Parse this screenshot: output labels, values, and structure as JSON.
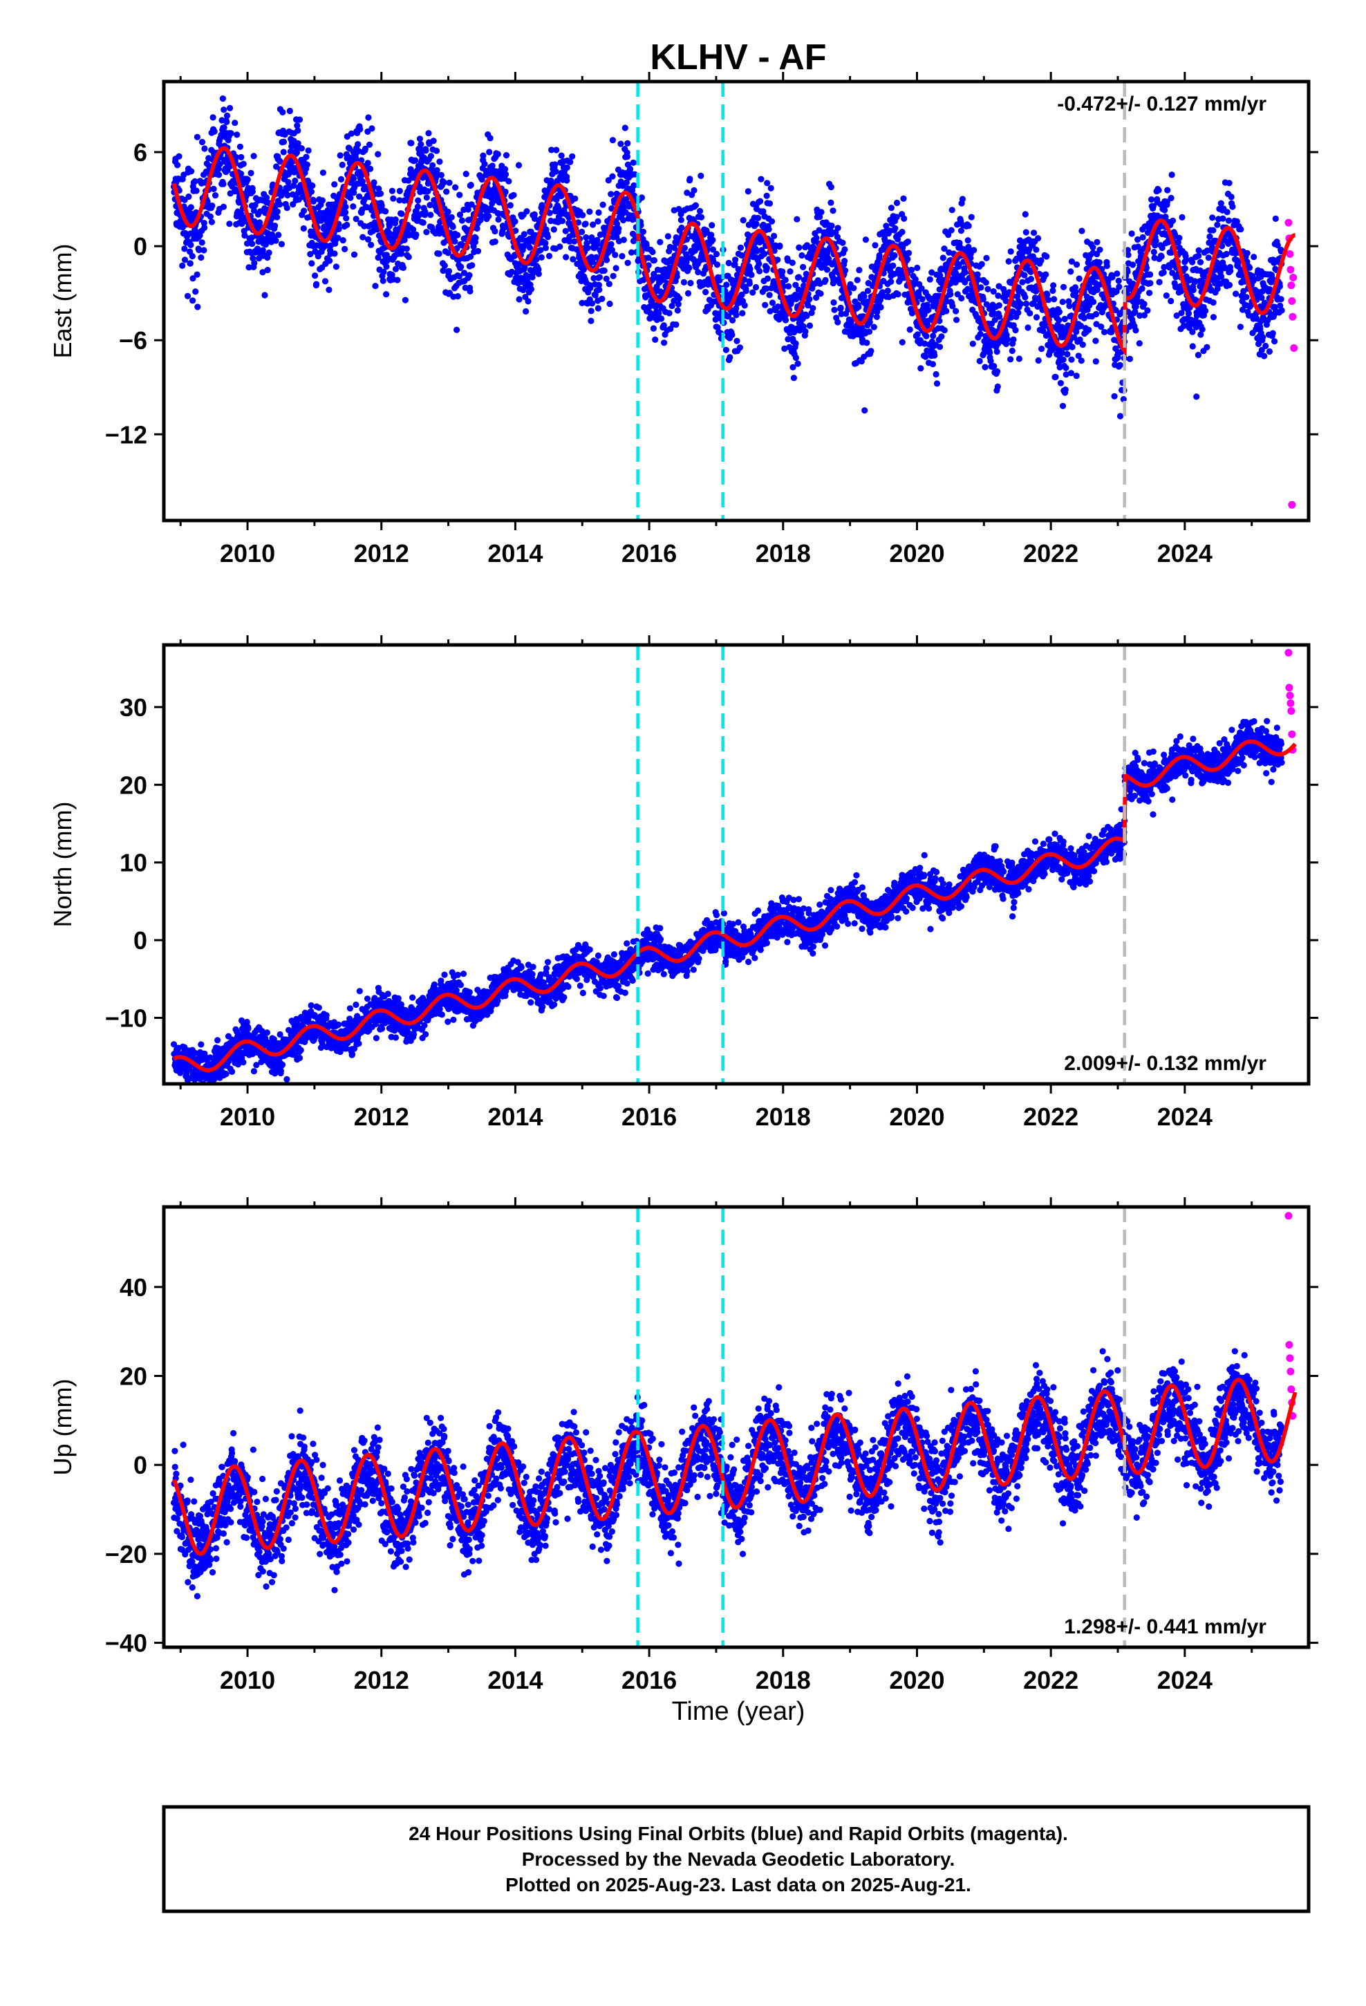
{
  "title": "KLHV - AF",
  "xlabel": "Time (year)",
  "footer": {
    "line1": "24 Hour Positions Using Final Orbits (blue) and Rapid Orbits (magenta).",
    "line2": "Processed by the Nevada Geodetic Laboratory.",
    "line3": "Plotted on 2025-Aug-23. Last data on 2025-Aug-21."
  },
  "colors": {
    "final_orbits": "#0000ff",
    "rapid_orbits": "#ff00ff",
    "model": "#ff0000",
    "equipment_change": "#00e5ee",
    "earthquake_offset": "#bbbbbb"
  },
  "chart_data": [
    {
      "type": "scatter",
      "component": "east",
      "ylabel": "East (mm)",
      "rate_label": "-0.472+/- 0.127 mm/yr",
      "xlim": [
        2008.75,
        2025.85
      ],
      "ylim": [
        -17.5,
        10.5
      ],
      "xticks": [
        2010,
        2012,
        2014,
        2016,
        2018,
        2020,
        2022,
        2024
      ],
      "yticks": [
        6,
        0,
        -6,
        -12
      ],
      "ytick_labels": [
        "6",
        "0",
        "−6",
        "−12"
      ],
      "cyan_lines": [
        2015.83,
        2017.1
      ],
      "gray_lines": [
        2023.1
      ],
      "series": [
        {
          "kind": "final_orbits",
          "x_start": 2008.9,
          "x_end": 2025.45,
          "trend_y0": 3.8,
          "rate": -0.472,
          "amplitude": 2.4,
          "phase_year": 0.4,
          "scatter": 1.6,
          "step_at": 2015.83,
          "step_y": -1.5,
          "step2_at": 2023.1,
          "step2_y": 3.5
        },
        {
          "kind": "rapid_orbits",
          "x": [
            2025.55,
            2025.56,
            2025.57,
            2025.58,
            2025.59,
            2025.6,
            2025.61,
            2025.62,
            2025.63,
            2025.6
          ],
          "y": [
            1.5,
            0.5,
            -0.5,
            -1.5,
            -2.5,
            -3.5,
            -4.5,
            -2.0,
            -6.5,
            -16.5
          ]
        }
      ],
      "model": {
        "y0": 4.0,
        "rate": -0.472,
        "amplitude": 2.6,
        "phase_year": 0.4,
        "offsets": [
          {
            "at": 2015.83,
            "dy": -1.5
          },
          {
            "at": 2023.1,
            "dy": 3.5
          }
        ]
      }
    },
    {
      "type": "scatter",
      "component": "north",
      "ylabel": "North (mm)",
      "rate_label": "2.009+/- 0.132 mm/yr",
      "xlim": [
        2008.75,
        2025.85
      ],
      "ylim": [
        -18.5,
        38
      ],
      "xticks": [
        2010,
        2012,
        2014,
        2016,
        2018,
        2020,
        2022,
        2024
      ],
      "yticks": [
        30,
        20,
        10,
        0,
        -10
      ],
      "ytick_labels": [
        "30",
        "20",
        "10",
        "0",
        "−10"
      ],
      "cyan_lines": [
        2015.83,
        2017.1
      ],
      "gray_lines": [
        2023.1
      ],
      "series": [
        {
          "kind": "final_orbits",
          "x_start": 2008.9,
          "x_end": 2025.45,
          "trend_y0": -16.5,
          "rate": 2.009,
          "amplitude": 1.2,
          "phase_year": 0.7,
          "scatter": 1.2,
          "step_at": 2023.1,
          "step_y": 8.5
        },
        {
          "kind": "rapid_orbits",
          "x": [
            2025.55,
            2025.56,
            2025.57,
            2025.58,
            2025.59,
            2025.6,
            2025.61
          ],
          "y": [
            37,
            32.5,
            31.5,
            30.5,
            29.5,
            26.5,
            24.5
          ]
        }
      ],
      "model": {
        "y0": -16.5,
        "rate": 2.009,
        "amplitude": 1.3,
        "phase_year": 0.7,
        "offsets": [
          {
            "at": 2023.1,
            "dy": 8.5
          }
        ]
      }
    },
    {
      "type": "scatter",
      "component": "up",
      "ylabel": "Up (mm)",
      "rate_label": "1.298+/- 0.441 mm/yr",
      "xlim": [
        2008.75,
        2025.85
      ],
      "ylim": [
        -41,
        58
      ],
      "xticks": [
        2010,
        2012,
        2014,
        2016,
        2018,
        2020,
        2022,
        2024
      ],
      "yticks": [
        40,
        20,
        0,
        -20,
        -40
      ],
      "ytick_labels": [
        "40",
        "20",
        "0",
        "−20",
        "−40"
      ],
      "cyan_lines": [
        2015.83,
        2017.1
      ],
      "gray_lines": [
        2023.1
      ],
      "series": [
        {
          "kind": "final_orbits",
          "x_start": 2008.9,
          "x_end": 2025.45,
          "trend_y0": -12,
          "rate": 1.298,
          "amplitude": 7.5,
          "phase_year": 0.55,
          "scatter": 4.5
        },
        {
          "kind": "rapid_orbits",
          "x": [
            2025.55,
            2025.56,
            2025.57,
            2025.58,
            2025.59,
            2025.6,
            2025.61
          ],
          "y": [
            56,
            27,
            24,
            21,
            17,
            14,
            11
          ]
        }
      ],
      "model": {
        "y0": -11,
        "rate": 1.298,
        "amplitude": 9.5,
        "phase_year": 0.55,
        "offsets": []
      }
    }
  ]
}
